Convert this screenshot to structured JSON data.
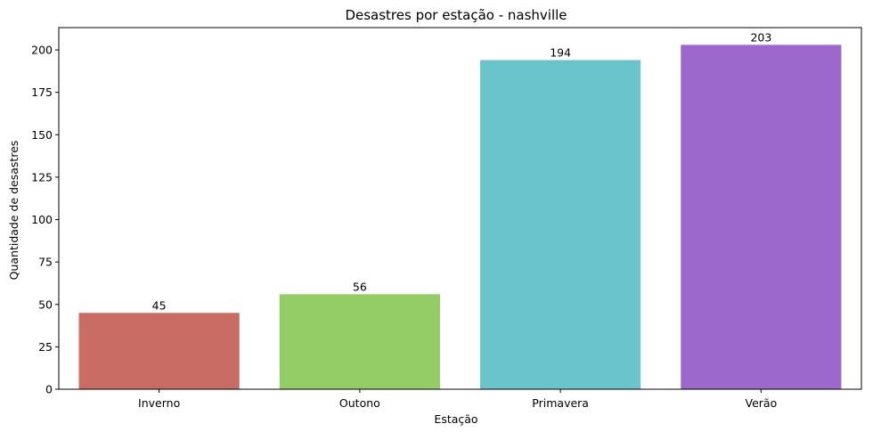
{
  "chart_data": {
    "type": "bar",
    "title": "Desastres por estação - nashville",
    "xlabel": "Estação",
    "ylabel": "Quantidade de desastres",
    "categories": [
      "Inverno",
      "Outono",
      "Primavera",
      "Verão"
    ],
    "values": [
      45,
      56,
      194,
      203
    ],
    "value_labels": [
      "45",
      "56",
      "194",
      "203"
    ],
    "colors": [
      "#c96c64",
      "#94cc66",
      "#69c5cb",
      "#9c68cc"
    ],
    "ylim": [
      0,
      213.15
    ],
    "yticks": [
      0,
      25,
      50,
      75,
      100,
      125,
      150,
      175,
      200
    ],
    "ytick_labels": [
      "0",
      "25",
      "50",
      "75",
      "100",
      "125",
      "150",
      "175",
      "200"
    ],
    "grid": false,
    "legend": "none"
  }
}
